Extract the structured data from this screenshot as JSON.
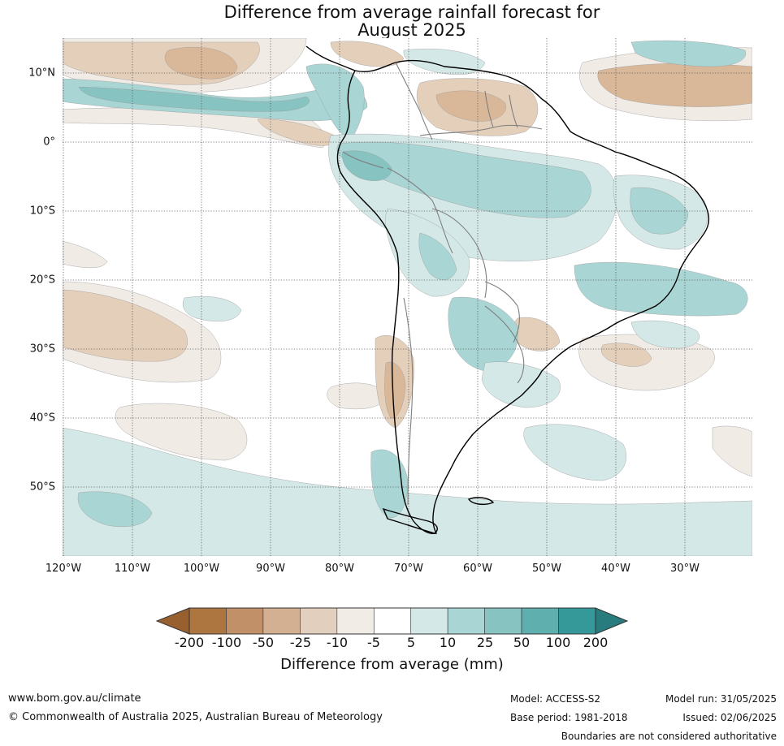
{
  "title_lines": [
    "Difference from average rainfall forecast for",
    "August 2025"
  ],
  "map": {
    "region": "South America",
    "lat_labels": [
      "10°N",
      "0°",
      "10°S",
      "20°S",
      "30°S",
      "40°S",
      "50°S"
    ],
    "lon_labels": [
      "120°W",
      "110°W",
      "100°W",
      "90°W",
      "80°W",
      "70°W",
      "60°W",
      "50°W",
      "40°W",
      "30°W"
    ],
    "colors": {
      "dry_strong": "#c89a72",
      "dry_mod": "#d9b899",
      "dry_light": "#e4cfbb",
      "dry_faint": "#f1ebe6",
      "wet_faint": "#d4e9e7",
      "wet_light": "#a9d6d4",
      "wet_mod": "#86c3c1",
      "wet_strong": "#5eafad",
      "coast": "#000000",
      "border": "#7f7f7f",
      "grid": "#555555"
    }
  },
  "legend": {
    "ticks": [
      "-200",
      "-100",
      "-50",
      "-25",
      "-10",
      "-5",
      "5",
      "10",
      "25",
      "50",
      "100",
      "200"
    ],
    "bin_colors": [
      "#ad7641",
      "#c19068",
      "#d3b091",
      "#e3cfbd",
      "#f2ece7",
      "#ffffff",
      "#d4e9e7",
      "#a9d6d4",
      "#86c3c1",
      "#5fafae",
      "#35999a"
    ],
    "low_extend_color": "#98602f",
    "high_extend_color": "#297c7d",
    "label": "Difference from average (mm)"
  },
  "footer": {
    "website": "www.bom.gov.au/climate",
    "copyright": "© Commonwealth of Australia 2025, Australian Bureau of Meteorology",
    "model": "Model: ACCESS-S2",
    "base_period": "Base period: 1981-2018",
    "model_run": "Model run: 31/05/2025",
    "issued": "Issued: 02/06/2025",
    "disclaimer": "Boundaries are not considered authoritative"
  }
}
